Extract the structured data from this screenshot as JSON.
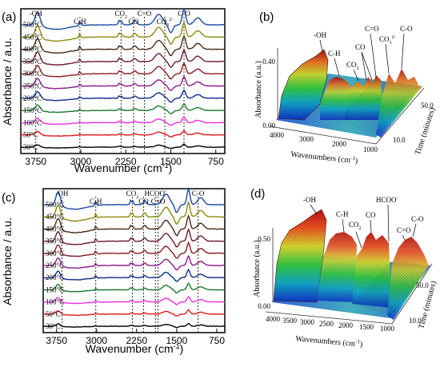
{
  "chart_data": [
    {
      "panel": "(a)",
      "type": "line",
      "xlabel": "Wavenumber (cm",
      "xlabel_sup": "-1",
      "xlabel_tail": ")",
      "ylabel": "Absorbance / a.u.",
      "xlim": [
        4000,
        600
      ],
      "x_ticks": [
        "3750",
        "3000",
        "2250",
        "1500",
        "750"
      ],
      "x_tick_values": [
        3750,
        3000,
        2250,
        1500,
        750
      ],
      "annotations": [
        {
          "text": "-OH",
          "x": 3750
        },
        {
          "text": "C-H",
          "x": 3015
        },
        {
          "text": "CO",
          "sub": "2",
          "x": 2330
        },
        {
          "text": "CO",
          "x": 2120
        },
        {
          "text": "C=O",
          "x": 1940
        },
        {
          "text": "CO",
          "sub": "3",
          "sup": "2-",
          "x": 1600
        },
        {
          "text": "C-O",
          "x": 1280
        }
      ],
      "series": [
        {
          "name": "30°C",
          "color": "#000000"
        },
        {
          "name": "50°C",
          "color": "#e0181c"
        },
        {
          "name": "100°C",
          "color": "#f02de0"
        },
        {
          "name": "150°C",
          "color": "#1a7a2a"
        },
        {
          "name": "200°C",
          "color": "#0d2e8a"
        },
        {
          "name": "250°C",
          "color": "#8a1a8a"
        },
        {
          "name": "300°C",
          "color": "#8a1a20"
        },
        {
          "name": "350°C",
          "color": "#6a1a30"
        },
        {
          "name": "400°C",
          "color": "#4a2a10"
        },
        {
          "name": "450°C",
          "color": "#8a8a10"
        },
        {
          "name": "500°C",
          "color": "#1a4aa0"
        }
      ]
    },
    {
      "panel": "(b)",
      "type": "surface3d",
      "zlabel": "Absorbance (a.u.)",
      "xlabel": "Wavenumbers (cm",
      "xlabel_sup": "-1",
      "xlabel_tail": ")",
      "ylabel": "Time (minutes)",
      "z_ticks": [
        "0.00",
        "0.40"
      ],
      "x_ticks": [
        "4000",
        "3000",
        "2000",
        "1000"
      ],
      "y_ticks": [
        "10.0",
        "50.0"
      ],
      "annotations": [
        "-OH",
        "C-H",
        "CO",
        "CO",
        "C=O",
        "CO",
        "C-O"
      ],
      "annotation_subs": {
        "2": "2",
        "5": "3"
      },
      "annotation_sups": {
        "5": "2-"
      }
    },
    {
      "panel": "(c)",
      "type": "line",
      "xlabel": "Wavenumber (cm",
      "xlabel_sup": "-1",
      "xlabel_tail": ")",
      "ylabel": "Absorbance / a.u.",
      "xlim": [
        4000,
        600
      ],
      "x_ticks": [
        "3750",
        "3000",
        "2250",
        "1500",
        "750"
      ],
      "x_tick_values": [
        3750,
        3000,
        2250,
        1500,
        750
      ],
      "annotations": [
        {
          "text": "-OH",
          "x": 3650
        },
        {
          "text": "C-H",
          "x": 3015
        },
        {
          "text": "CO",
          "sub": "2",
          "x": 2330
        },
        {
          "text": "CO",
          "x": 2120
        },
        {
          "text": "HCOO",
          "sup": "-",
          "x": 1900
        },
        {
          "text": "C=O",
          "x": 1850
        },
        {
          "text": "C-O",
          "x": 1100
        }
      ],
      "series": [
        {
          "name": "30°C",
          "color": "#000000"
        },
        {
          "name": "50°C",
          "color": "#e0181c"
        },
        {
          "name": "100°C",
          "color": "#f02de0"
        },
        {
          "name": "150°C",
          "color": "#1a7a2a"
        },
        {
          "name": "200°C",
          "color": "#0d2e8a"
        },
        {
          "name": "250°C",
          "color": "#8a1a8a"
        },
        {
          "name": "300°C",
          "color": "#8a1a20"
        },
        {
          "name": "350°C",
          "color": "#6a1a30"
        },
        {
          "name": "400°C",
          "color": "#4a2a10"
        },
        {
          "name": "450°C",
          "color": "#8a8a10"
        },
        {
          "name": "500°C",
          "color": "#1a4aa0"
        }
      ]
    },
    {
      "panel": "(d)",
      "type": "surface3d",
      "zlabel": "Absorbance (a.u.)",
      "xlabel": "Wavenumbers (cm",
      "xlabel_sup": "-1",
      "xlabel_tail": ")",
      "ylabel": "Time (minutes)",
      "z_ticks": [
        "0.00",
        "0.50"
      ],
      "x_ticks": [
        "4000",
        "3500",
        "3000",
        "2500",
        "2000",
        "1500",
        "1000"
      ],
      "y_ticks": [
        "10.0",
        "50.0"
      ],
      "annotations": [
        "-OH",
        "C-H",
        "CO",
        "HCOO",
        "CO",
        "C=O",
        "C-O"
      ],
      "annotation_subs": {
        "2": "2"
      },
      "annotation_sups": {
        "3": "-"
      }
    }
  ]
}
